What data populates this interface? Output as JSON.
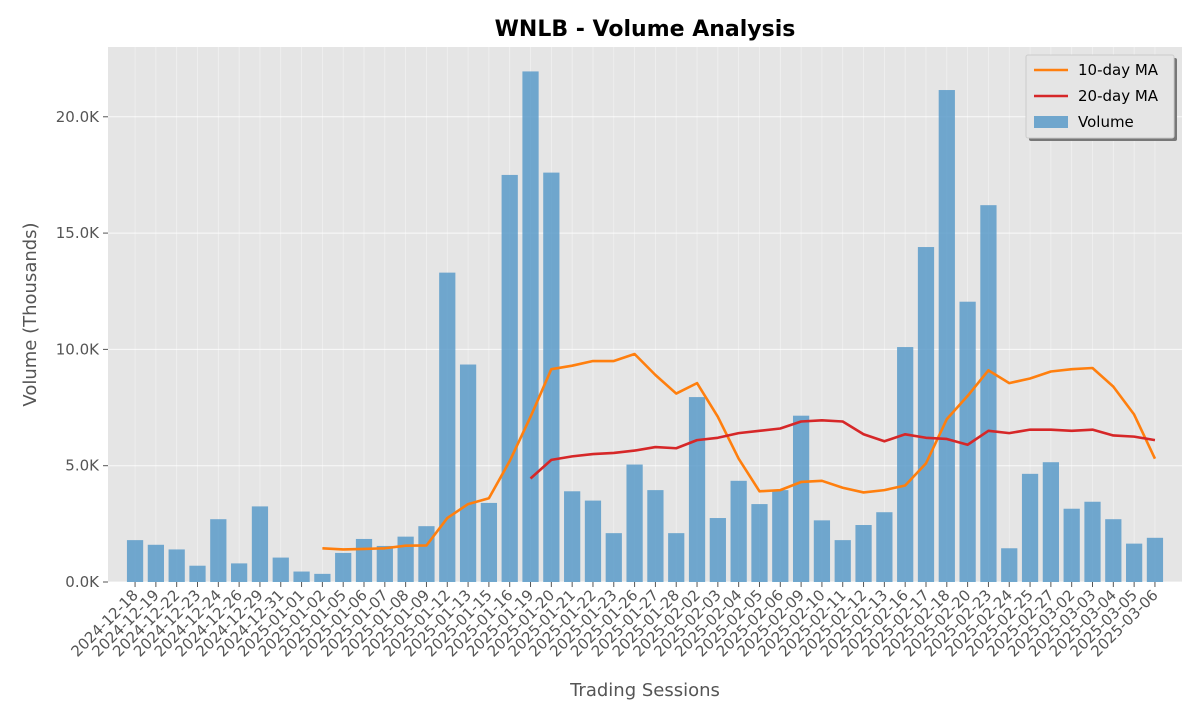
{
  "chart_data": {
    "type": "bar",
    "title": "WNLB - Volume Analysis",
    "xlabel": "Trading Sessions",
    "ylabel": "Volume (Thousands)",
    "ylim": [
      0,
      23000
    ],
    "yticks": [
      0,
      5000,
      10000,
      15000,
      20000
    ],
    "ytick_labels": [
      "0.0K",
      "5.0K",
      "10.0K",
      "15.0K",
      "20.0K"
    ],
    "grid": true,
    "legend_position": "top-right",
    "categories": [
      "2024-12-18",
      "2024-12-19",
      "2024-12-22",
      "2024-12-23",
      "2024-12-24",
      "2024-12-26",
      "2024-12-29",
      "2024-12-31",
      "2025-01-01",
      "2025-01-02",
      "2025-01-05",
      "2025-01-06",
      "2025-01-07",
      "2025-01-08",
      "2025-01-09",
      "2025-01-12",
      "2025-01-13",
      "2025-01-15",
      "2025-01-16",
      "2025-01-19",
      "2025-01-20",
      "2025-01-21",
      "2025-01-22",
      "2025-01-23",
      "2025-01-26",
      "2025-01-27",
      "2025-01-28",
      "2025-02-02",
      "2025-02-03",
      "2025-02-04",
      "2025-02-05",
      "2025-02-06",
      "2025-02-09",
      "2025-02-10",
      "2025-02-11",
      "2025-02-12",
      "2025-02-13",
      "2025-02-16",
      "2025-02-17",
      "2025-02-18",
      "2025-02-20",
      "2025-02-23",
      "2025-02-24",
      "2025-02-25",
      "2025-02-27",
      "2025-03-02",
      "2025-03-03",
      "2025-03-04",
      "2025-03-05",
      "2025-03-06"
    ],
    "series": [
      {
        "name": "Volume",
        "type": "bar",
        "color": "#5b9bc9",
        "values": [
          1800,
          1600,
          1400,
          700,
          2700,
          800,
          3250,
          1050,
          450,
          350,
          1250,
          1850,
          1550,
          1950,
          2400,
          13300,
          9350,
          3400,
          17500,
          21950,
          17600,
          3900,
          3500,
          2100,
          5050,
          3950,
          2100,
          7950,
          2750,
          4350,
          3350,
          3950,
          7150,
          2650,
          1800,
          2450,
          3000,
          10100,
          14400,
          21150,
          12050,
          16200,
          1450,
          4650,
          5150,
          3150,
          3450,
          2700,
          1650,
          1900
        ]
      },
      {
        "name": "10-day MA",
        "type": "line",
        "color": "#ff7f0e",
        "values": [
          null,
          null,
          null,
          null,
          null,
          null,
          null,
          null,
          null,
          1450,
          1400,
          1420,
          1450,
          1560,
          1570,
          2750,
          3350,
          3600,
          5200,
          7100,
          9150,
          9300,
          9500,
          9500,
          9800,
          8900,
          8100,
          8550,
          7100,
          5300,
          3900,
          3950,
          4300,
          4350,
          4050,
          3850,
          3950,
          4150,
          5100,
          7000,
          8000,
          9100,
          8550,
          8750,
          9050,
          9150,
          9200,
          8400,
          7200,
          5300
        ]
      },
      {
        "name": "20-day MA",
        "type": "line",
        "color": "#d62728",
        "values": [
          null,
          null,
          null,
          null,
          null,
          null,
          null,
          null,
          null,
          null,
          null,
          null,
          null,
          null,
          null,
          null,
          null,
          null,
          null,
          4450,
          5250,
          5400,
          5500,
          5550,
          5650,
          5800,
          5750,
          6100,
          6200,
          6400,
          6500,
          6600,
          6900,
          6950,
          6900,
          6350,
          6050,
          6350,
          6200,
          6150,
          5900,
          6500,
          6400,
          6550,
          6550,
          6500,
          6550,
          6300,
          6250,
          6100
        ]
      }
    ]
  }
}
